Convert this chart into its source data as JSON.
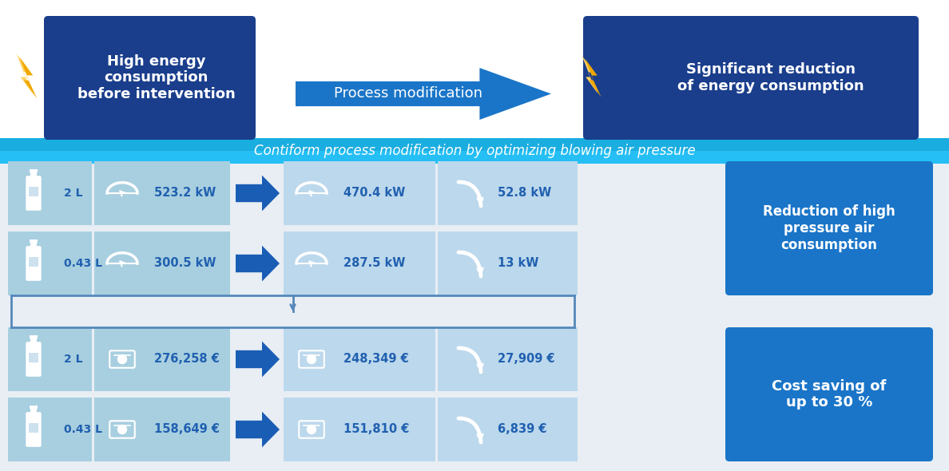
{
  "bg_color": "#e8eef4",
  "white": "#ffffff",
  "dark_blue": "#1a3e8c",
  "mid_blue": "#1a75c8",
  "light_blue1": "#9dc5e0",
  "light_blue2": "#b8d8ee",
  "banner_blue": "#1a96d2",
  "arrow_blue": "#1a5db5",
  "gold": "#f5c000",
  "gold2": "#f0a800",
  "label_blue": "#2060b0",
  "top_left_box": "High energy\nconsumption\nbefore intervention",
  "top_middle_arrow": "Process modification",
  "top_right_box": "Significant reduction\nof energy consumption",
  "subtitle_banner": "Contiform process modification by optimizing blowing air pressure",
  "row1_bottle": "2 L",
  "row1_before_kw": "523.2 kW",
  "row1_after_kw": "470.4 kW",
  "row1_saving_kw": "52.8 kW",
  "row2_bottle": "0.43 L",
  "row2_before_kw": "300.5 kW",
  "row2_after_kw": "287.5 kW",
  "row2_saving_kw": "13 kW",
  "right_label1": "Reduction of high\npressure air\nconsumption",
  "row3_bottle": "2 L",
  "row3_before_eur": "276,258 €",
  "row3_after_eur": "248,349 €",
  "row3_saving_eur": "27,909 €",
  "row4_bottle": "0.43 L",
  "row4_before_eur": "158,649 €",
  "row4_after_eur": "151,810 €",
  "row4_saving_eur": "6,839 €",
  "right_label2": "Cost saving of\nup to 30 %"
}
